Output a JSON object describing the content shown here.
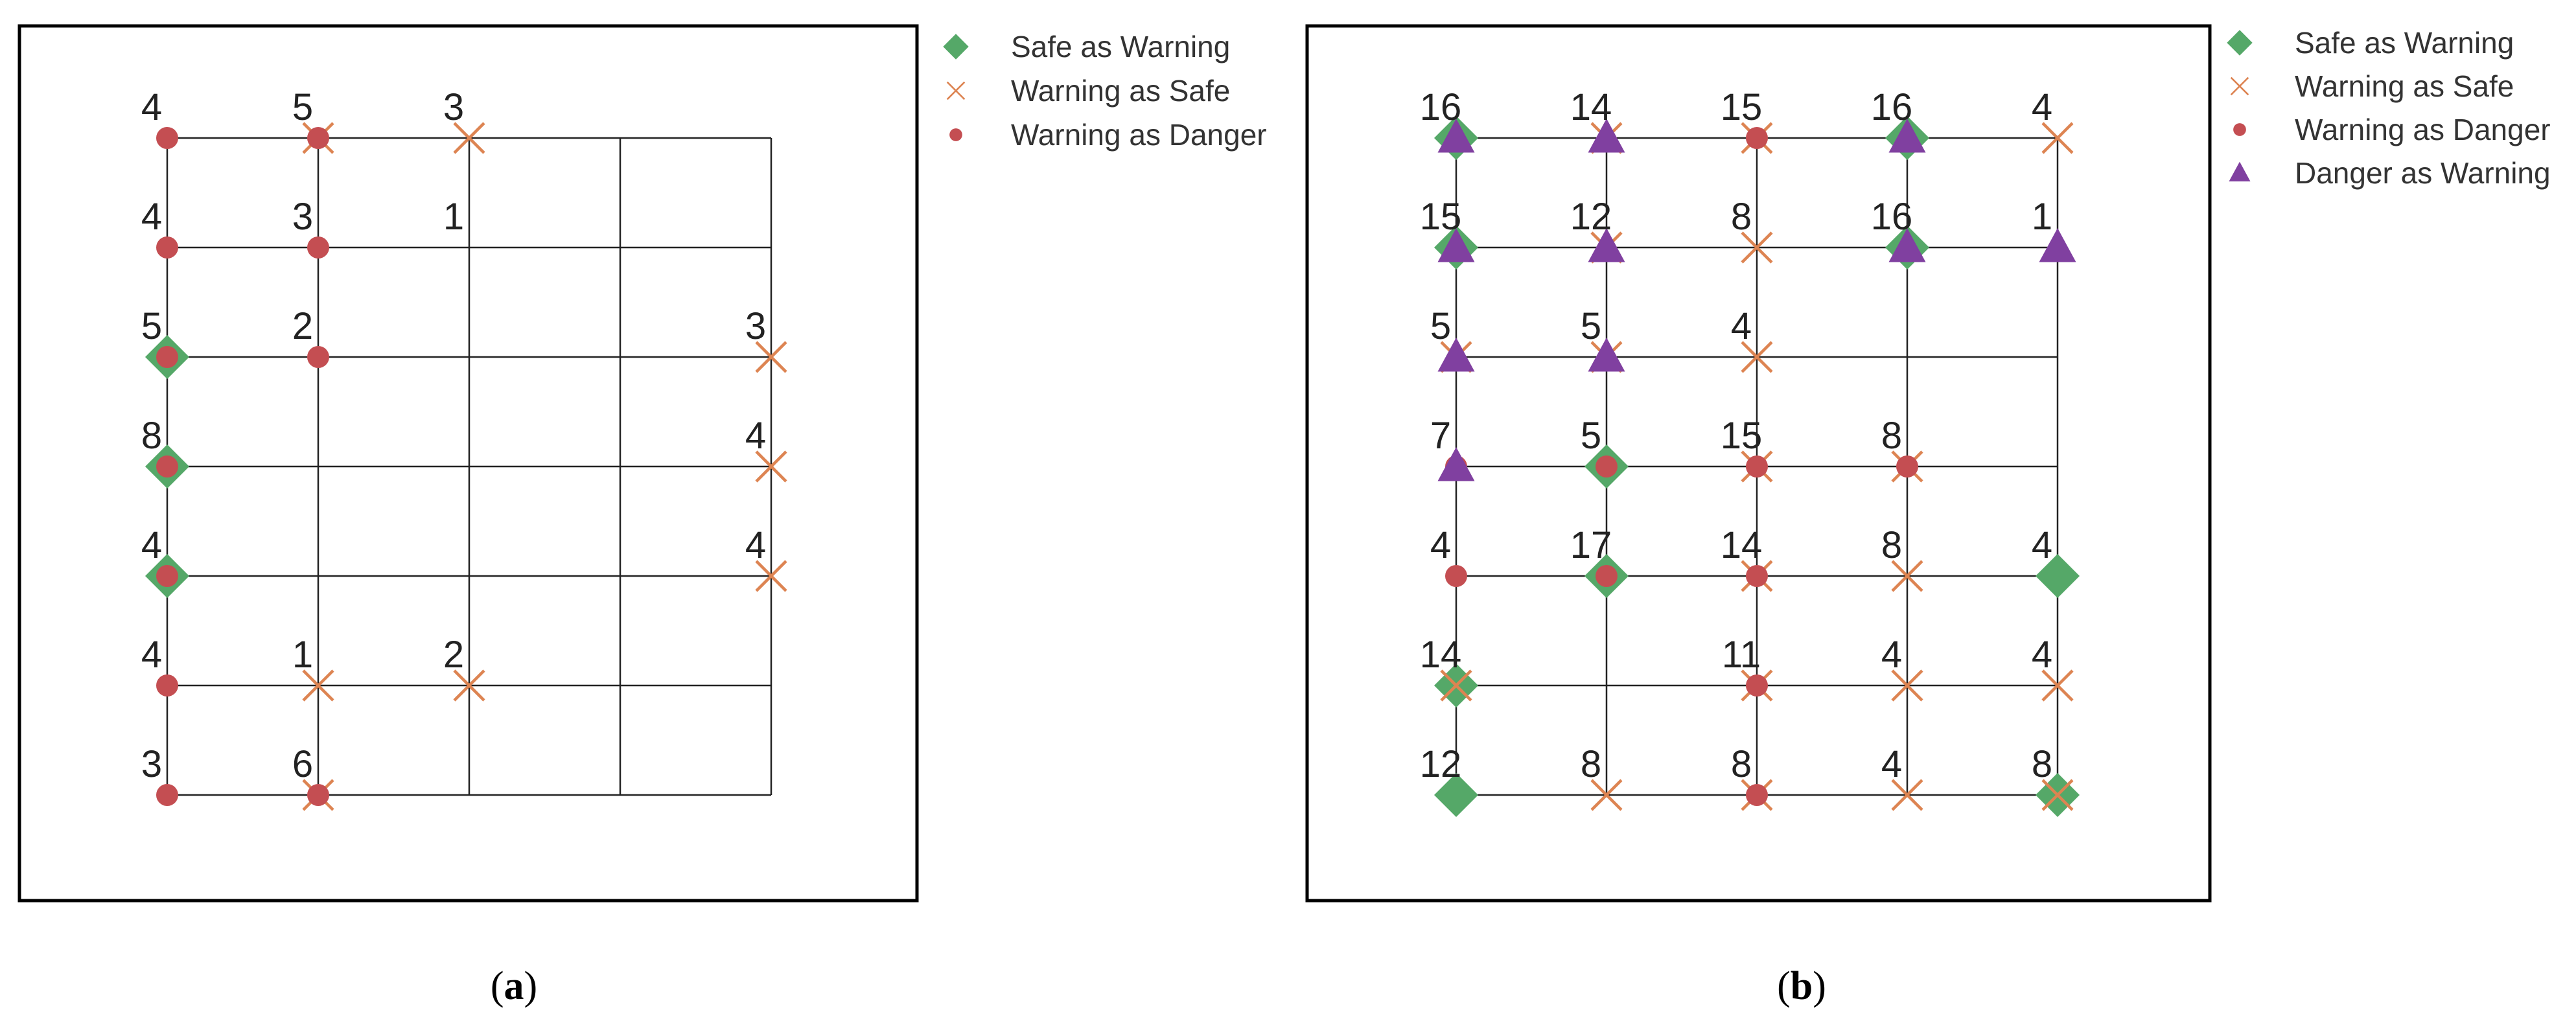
{
  "colors": {
    "safe_as_warning": "#55a868",
    "warning_as_safe": "#dd8452",
    "warning_as_danger": "#c44e52",
    "danger_as_warning": "#8040a0"
  },
  "chart_data": [
    {
      "type": "scatter",
      "caption_letter": "a",
      "title": "",
      "xlabel": "",
      "ylabel": "",
      "grid": true,
      "grid_size": [
        5,
        7
      ],
      "legend_position": "outside-right",
      "series": [
        {
          "name": "Safe as Warning",
          "marker": "diamond",
          "points": [
            [
              0,
              2
            ],
            [
              0,
              3
            ],
            [
              0,
              4
            ]
          ]
        },
        {
          "name": "Warning as Safe",
          "marker": "x",
          "points": [
            [
              1,
              0
            ],
            [
              2,
              0
            ],
            [
              4,
              2
            ],
            [
              4,
              3
            ],
            [
              4,
              4
            ],
            [
              1,
              5
            ],
            [
              2,
              5
            ],
            [
              1,
              6
            ]
          ]
        },
        {
          "name": "Warning as Danger",
          "marker": "circle",
          "points": [
            [
              0,
              0
            ],
            [
              1,
              0
            ],
            [
              0,
              1
            ],
            [
              1,
              1
            ],
            [
              0,
              2
            ],
            [
              1,
              2
            ],
            [
              0,
              3
            ],
            [
              0,
              4
            ],
            [
              0,
              5
            ],
            [
              0,
              6
            ],
            [
              1,
              6
            ]
          ]
        }
      ],
      "counts": [
        {
          "col": 0,
          "row": 0,
          "value": "4"
        },
        {
          "col": 1,
          "row": 0,
          "value": "5"
        },
        {
          "col": 2,
          "row": 0,
          "value": "3"
        },
        {
          "col": 0,
          "row": 1,
          "value": "4"
        },
        {
          "col": 1,
          "row": 1,
          "value": "3"
        },
        {
          "col": 2,
          "row": 1,
          "value": "1"
        },
        {
          "col": 0,
          "row": 2,
          "value": "5"
        },
        {
          "col": 1,
          "row": 2,
          "value": "2"
        },
        {
          "col": 4,
          "row": 2,
          "value": "3"
        },
        {
          "col": 0,
          "row": 3,
          "value": "8"
        },
        {
          "col": 4,
          "row": 3,
          "value": "4"
        },
        {
          "col": 0,
          "row": 4,
          "value": "4"
        },
        {
          "col": 4,
          "row": 4,
          "value": "4"
        },
        {
          "col": 0,
          "row": 5,
          "value": "4"
        },
        {
          "col": 1,
          "row": 5,
          "value": "1"
        },
        {
          "col": 2,
          "row": 5,
          "value": "2"
        },
        {
          "col": 0,
          "row": 6,
          "value": "3"
        },
        {
          "col": 1,
          "row": 6,
          "value": "6"
        }
      ]
    },
    {
      "type": "scatter",
      "caption_letter": "b",
      "title": "",
      "xlabel": "",
      "ylabel": "",
      "grid": true,
      "grid_size": [
        5,
        7
      ],
      "legend_position": "outside-right",
      "series": [
        {
          "name": "Safe as Warning",
          "marker": "diamond",
          "points": [
            [
              0,
              0
            ],
            [
              3,
              0
            ],
            [
              0,
              1
            ],
            [
              3,
              1
            ],
            [
              1,
              3
            ],
            [
              1,
              4
            ],
            [
              4,
              4
            ],
            [
              0,
              5
            ],
            [
              0,
              6
            ],
            [
              4,
              6
            ]
          ]
        },
        {
          "name": "Warning as Safe",
          "marker": "x",
          "points": [
            [
              1,
              0
            ],
            [
              2,
              0
            ],
            [
              4,
              0
            ],
            [
              1,
              1
            ],
            [
              2,
              1
            ],
            [
              0,
              2
            ],
            [
              1,
              2
            ],
            [
              2,
              2
            ],
            [
              2,
              3
            ],
            [
              3,
              3
            ],
            [
              2,
              4
            ],
            [
              3,
              4
            ],
            [
              0,
              5
            ],
            [
              2,
              5
            ],
            [
              3,
              5
            ],
            [
              4,
              5
            ],
            [
              1,
              6
            ],
            [
              2,
              6
            ],
            [
              3,
              6
            ],
            [
              4,
              6
            ]
          ]
        },
        {
          "name": "Warning as Danger",
          "marker": "circle",
          "points": [
            [
              2,
              0
            ],
            [
              2,
              3
            ],
            [
              3,
              3
            ],
            [
              0,
              3
            ],
            [
              1,
              3
            ],
            [
              0,
              4
            ],
            [
              1,
              4
            ],
            [
              2,
              4
            ],
            [
              2,
              5
            ],
            [
              2,
              6
            ]
          ]
        },
        {
          "name": "Danger as Warning",
          "marker": "triangle",
          "points": [
            [
              0,
              0
            ],
            [
              1,
              0
            ],
            [
              3,
              0
            ],
            [
              0,
              1
            ],
            [
              1,
              1
            ],
            [
              3,
              1
            ],
            [
              4,
              1
            ],
            [
              0,
              2
            ],
            [
              1,
              2
            ],
            [
              0,
              3
            ]
          ]
        }
      ],
      "counts": [
        {
          "col": 0,
          "row": 0,
          "value": "16"
        },
        {
          "col": 1,
          "row": 0,
          "value": "14"
        },
        {
          "col": 2,
          "row": 0,
          "value": "15"
        },
        {
          "col": 3,
          "row": 0,
          "value": "16"
        },
        {
          "col": 4,
          "row": 0,
          "value": "4"
        },
        {
          "col": 0,
          "row": 1,
          "value": "15"
        },
        {
          "col": 1,
          "row": 1,
          "value": "12"
        },
        {
          "col": 2,
          "row": 1,
          "value": "8"
        },
        {
          "col": 3,
          "row": 1,
          "value": "16"
        },
        {
          "col": 4,
          "row": 1,
          "value": "1"
        },
        {
          "col": 0,
          "row": 2,
          "value": "5"
        },
        {
          "col": 1,
          "row": 2,
          "value": "5"
        },
        {
          "col": 2,
          "row": 2,
          "value": "4"
        },
        {
          "col": 0,
          "row": 3,
          "value": "7"
        },
        {
          "col": 1,
          "row": 3,
          "value": "5"
        },
        {
          "col": 2,
          "row": 3,
          "value": "15"
        },
        {
          "col": 3,
          "row": 3,
          "value": "8"
        },
        {
          "col": 0,
          "row": 4,
          "value": "4"
        },
        {
          "col": 1,
          "row": 4,
          "value": "17"
        },
        {
          "col": 2,
          "row": 4,
          "value": "14"
        },
        {
          "col": 3,
          "row": 4,
          "value": "8"
        },
        {
          "col": 4,
          "row": 4,
          "value": "4"
        },
        {
          "col": 0,
          "row": 5,
          "value": "14"
        },
        {
          "col": 2,
          "row": 5,
          "value": "11"
        },
        {
          "col": 3,
          "row": 5,
          "value": "4"
        },
        {
          "col": 4,
          "row": 5,
          "value": "4"
        },
        {
          "col": 0,
          "row": 6,
          "value": "12"
        },
        {
          "col": 1,
          "row": 6,
          "value": "8"
        },
        {
          "col": 2,
          "row": 6,
          "value": "8"
        },
        {
          "col": 3,
          "row": 6,
          "value": "4"
        },
        {
          "col": 4,
          "row": 6,
          "value": "8"
        }
      ]
    }
  ]
}
